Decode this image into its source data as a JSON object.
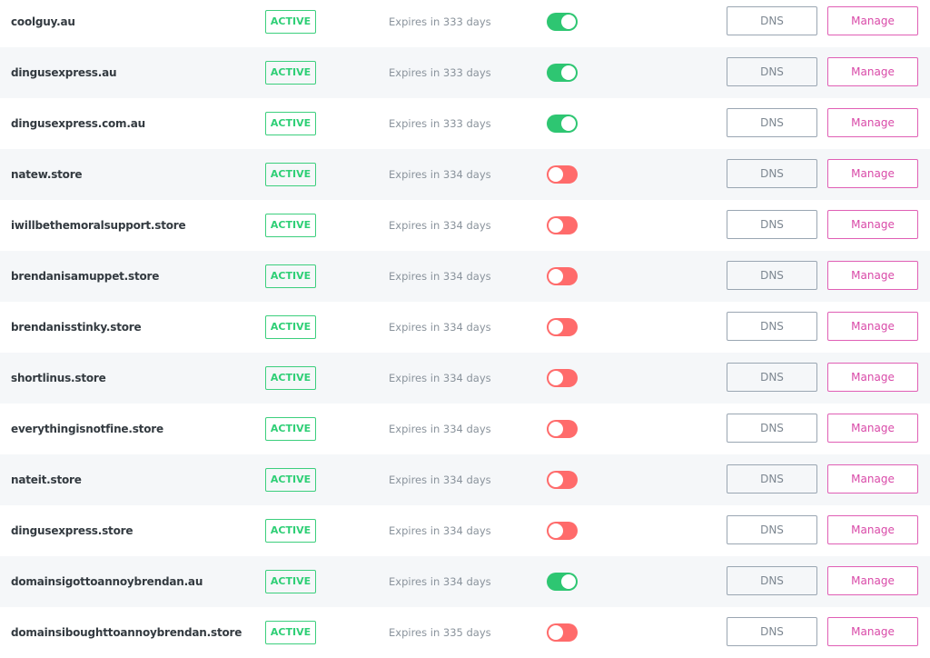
{
  "colors": {
    "active": "#2fcf76",
    "toggle_on": "#2ec672",
    "toggle_off": "#ff6b6b",
    "manage": "#d94aa8",
    "row_alt": "#f5f7f9"
  },
  "labels": {
    "dns": "DNS",
    "manage": "Manage"
  },
  "domains": [
    {
      "name": "coolguy.au",
      "status": "ACTIVE",
      "expires": "Expires in 333 days",
      "auto_renew": true
    },
    {
      "name": "dingusexpress.au",
      "status": "ACTIVE",
      "expires": "Expires in 333 days",
      "auto_renew": true
    },
    {
      "name": "dingusexpress.com.au",
      "status": "ACTIVE",
      "expires": "Expires in 333 days",
      "auto_renew": true
    },
    {
      "name": "natew.store",
      "status": "ACTIVE",
      "expires": "Expires in 334 days",
      "auto_renew": false
    },
    {
      "name": "iwillbethemoralsupport.store",
      "status": "ACTIVE",
      "expires": "Expires in 334 days",
      "auto_renew": false
    },
    {
      "name": "brendanisamuppet.store",
      "status": "ACTIVE",
      "expires": "Expires in 334 days",
      "auto_renew": false
    },
    {
      "name": "brendanisstinky.store",
      "status": "ACTIVE",
      "expires": "Expires in 334 days",
      "auto_renew": false
    },
    {
      "name": "shortlinus.store",
      "status": "ACTIVE",
      "expires": "Expires in 334 days",
      "auto_renew": false
    },
    {
      "name": "everythingisnotfine.store",
      "status": "ACTIVE",
      "expires": "Expires in 334 days",
      "auto_renew": false
    },
    {
      "name": "nateit.store",
      "status": "ACTIVE",
      "expires": "Expires in 334 days",
      "auto_renew": false
    },
    {
      "name": "dingusexpress.store",
      "status": "ACTIVE",
      "expires": "Expires in 334 days",
      "auto_renew": false
    },
    {
      "name": "domainsigottoannoybrendan.au",
      "status": "ACTIVE",
      "expires": "Expires in 334 days",
      "auto_renew": true
    },
    {
      "name": "domainsiboughttoannoybrendan.store",
      "status": "ACTIVE",
      "expires": "Expires in 335 days",
      "auto_renew": false
    }
  ]
}
